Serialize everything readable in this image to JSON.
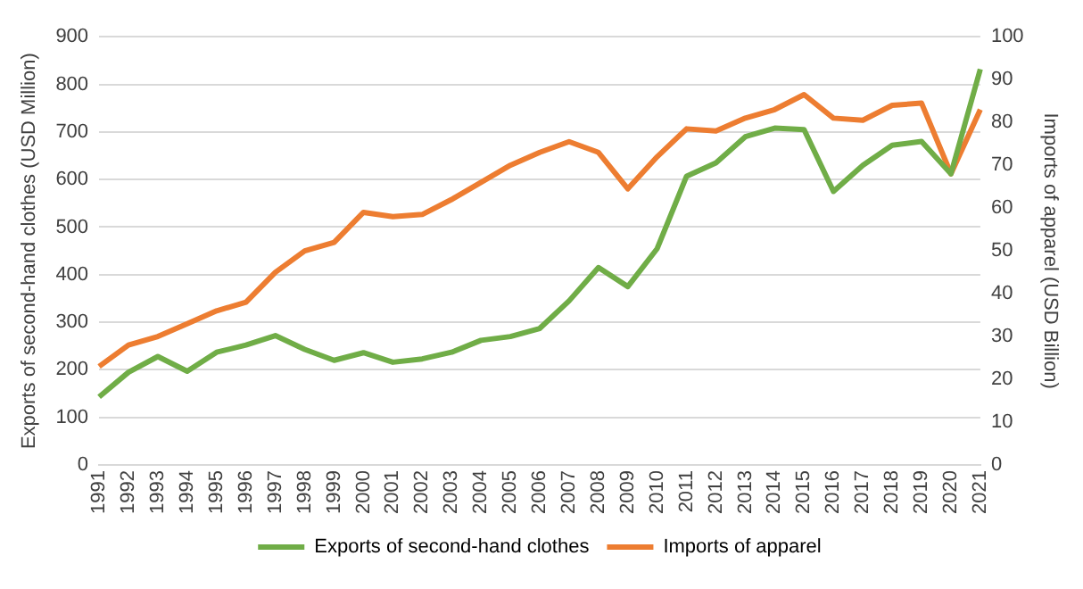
{
  "chart_data": {
    "type": "line",
    "xlabel": null,
    "ylabel": "Exports of second-hand clothes (USD Million)",
    "y2label": "Imports of apparel (USD Billion)",
    "categories": [
      "1991",
      "1992",
      "1993",
      "1994",
      "1995",
      "1996",
      "1997",
      "1998",
      "1999",
      "2000",
      "2001",
      "2002",
      "2003",
      "2004",
      "2005",
      "2006",
      "2007",
      "2008",
      "2009",
      "2010",
      "2011",
      "2012",
      "2013",
      "2014",
      "2015",
      "2016",
      "2017",
      "2018",
      "2019",
      "2020",
      "2021"
    ],
    "series": [
      {
        "name": "Exports of second-hand clothes",
        "color": "#70ad47",
        "values": [
          143,
          195,
          228,
          197,
          237,
          252,
          272,
          243,
          220,
          236,
          216,
          223,
          237,
          262,
          270,
          287,
          345,
          415,
          375,
          455,
          607,
          635,
          690,
          708,
          705,
          575,
          630,
          672,
          680,
          612,
          832
        ]
      },
      {
        "name": "Imports of apparel",
        "color": "#ed7d31",
        "axis": "y2",
        "values": [
          23,
          28,
          30,
          33,
          36,
          38,
          45,
          50,
          52,
          59,
          58,
          58.5,
          62,
          66,
          70,
          73,
          75.5,
          73,
          64.5,
          72,
          78.5,
          78,
          81,
          83,
          86.5,
          81,
          80.5,
          84,
          84.5,
          68,
          83
        ]
      }
    ],
    "ylim": [
      0,
      900
    ],
    "yticks": [
      0,
      100,
      200,
      300,
      400,
      500,
      600,
      700,
      800,
      900
    ],
    "y2lim": [
      0,
      100
    ],
    "y2ticks": [
      0,
      10,
      20,
      30,
      40,
      50,
      60,
      70,
      80,
      90,
      100
    ],
    "grid": "y",
    "legend": "bottom",
    "marker": "none",
    "line_style": "solid"
  }
}
